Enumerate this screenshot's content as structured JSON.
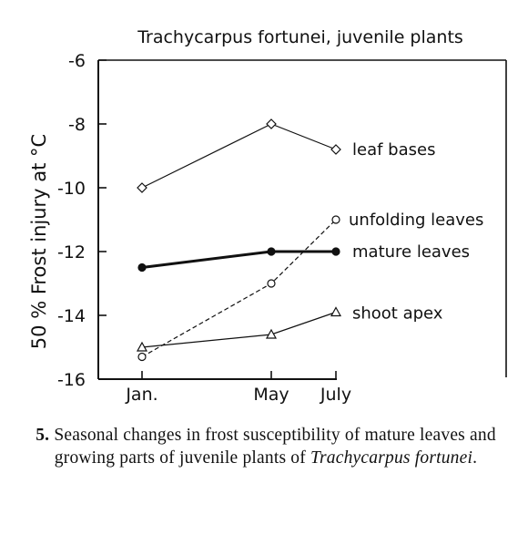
{
  "chart_data": {
    "type": "line",
    "title": "Trachycarpus fortunei, juvenile plants",
    "xlabel": "",
    "ylabel": "50 % Frost injury at °C",
    "categories": [
      "Jan.",
      "May",
      "July"
    ],
    "x": [
      1,
      5,
      7
    ],
    "ylim": [
      -16,
      -6
    ],
    "yticks": [
      -6,
      -8,
      -10,
      -12,
      -14,
      -16
    ],
    "yticklabels": [
      "-6",
      "-8",
      "-10",
      "-12",
      "-14",
      "-16"
    ],
    "grid": false,
    "legend": "labels at line ends",
    "series": [
      {
        "name": "leaf bases",
        "marker": "diamond-open",
        "line": "solid",
        "values": [
          -10.0,
          -8.0,
          -8.8
        ]
      },
      {
        "name": "unfolding leaves",
        "marker": "circle-open",
        "line": "dashed",
        "values": [
          -15.3,
          -13.0,
          -11.0
        ]
      },
      {
        "name": "mature leaves",
        "marker": "circle-filled",
        "line": "solid-thick",
        "values": [
          -12.5,
          -12.0,
          -12.0
        ]
      },
      {
        "name": "shoot apex",
        "marker": "triangle-open",
        "line": "solid",
        "values": [
          -15.0,
          -14.6,
          -13.9
        ]
      }
    ]
  },
  "caption": {
    "number": "5.",
    "text_before": "Seasonal changes in frost susceptibility of mature leaves and growing parts of juvenile plants of",
    "species": "Trachycarpus fortunei",
    "text_after": "."
  }
}
